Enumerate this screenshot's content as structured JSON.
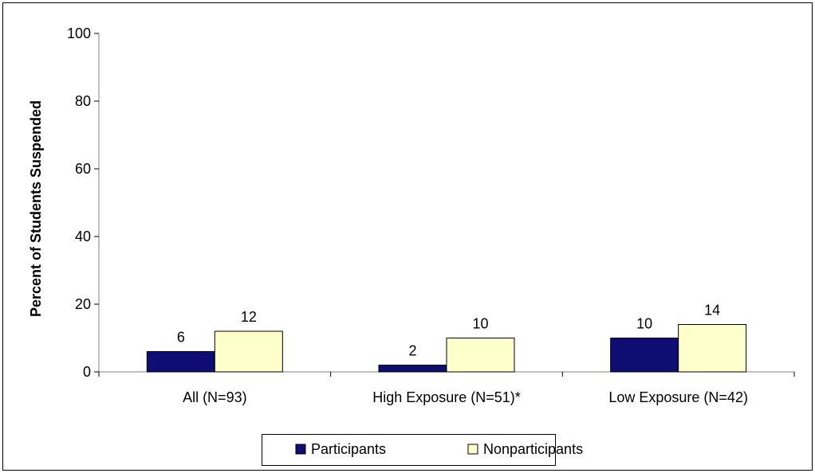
{
  "chart_data": {
    "type": "bar",
    "title": "",
    "xlabel": "",
    "ylabel": "Percent of Students Suspended",
    "ylim": [
      0,
      100
    ],
    "yticks": [
      0,
      20,
      40,
      60,
      80,
      100
    ],
    "grid": false,
    "legend_position": "bottom",
    "categories": [
      "All (N=93)",
      "High Exposure (N=51)*",
      "Low  Exposure (N=42)"
    ],
    "series": [
      {
        "name": "Participants",
        "values": [
          6,
          2,
          10
        ],
        "color": "#0d0d73"
      },
      {
        "name": "Nonparticipants",
        "values": [
          12,
          10,
          14
        ],
        "color": "#ffffcc"
      }
    ],
    "data_labels": true
  }
}
